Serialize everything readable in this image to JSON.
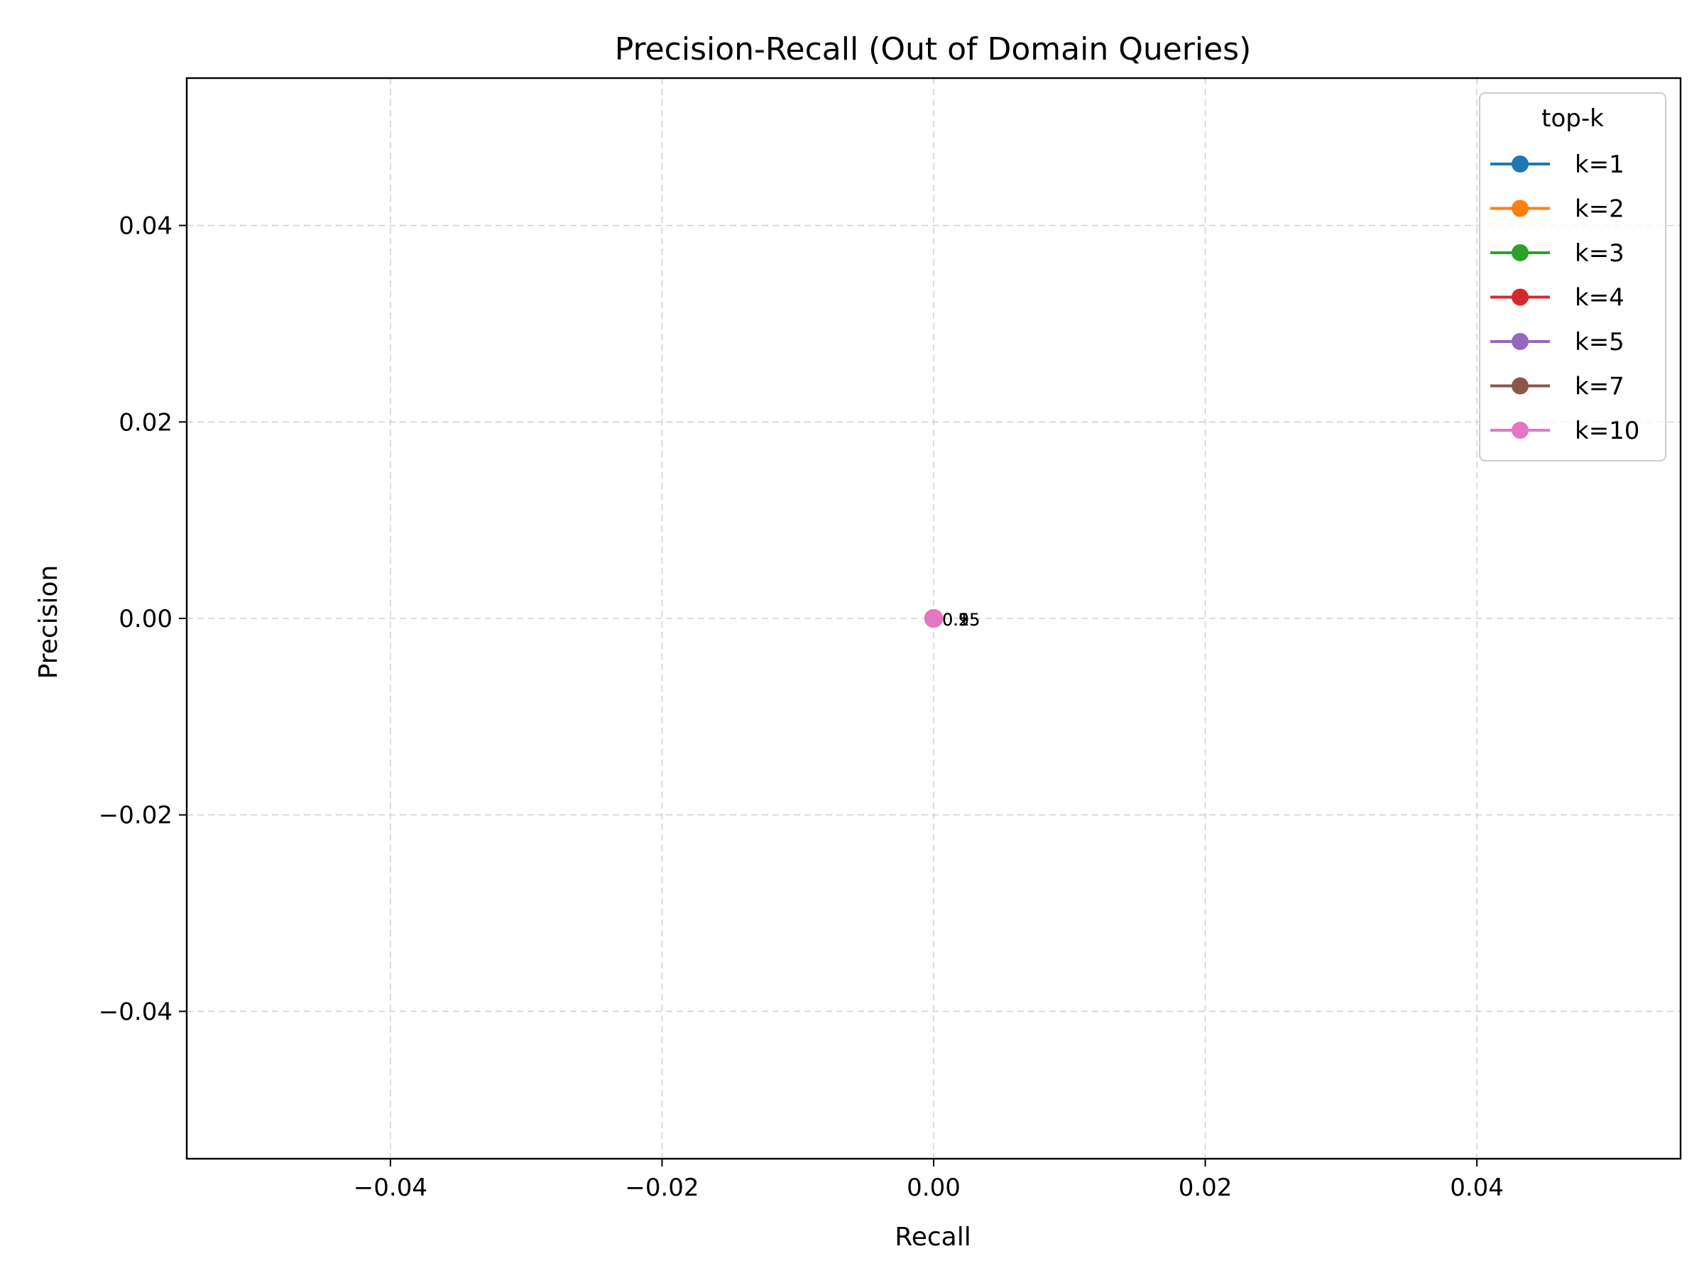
{
  "chart_data": {
    "type": "line",
    "title": "Precision-Recall (Out of Domain Queries)",
    "xlabel": "Recall",
    "ylabel": "Precision",
    "xlim": [
      -0.055,
      0.055
    ],
    "ylim": [
      -0.055,
      0.055
    ],
    "xticks": [
      -0.04,
      -0.02,
      0.0,
      0.02,
      0.04
    ],
    "yticks": [
      -0.04,
      -0.02,
      0.0,
      0.02,
      0.04
    ],
    "xtick_labels": [
      "−0.04",
      "−0.02",
      "0.00",
      "0.02",
      "0.04"
    ],
    "ytick_labels": [
      "−0.04",
      "−0.02",
      "0.00",
      "0.02",
      "0.04"
    ],
    "grid": true,
    "legend": {
      "title": "top-k",
      "placement": "top-right"
    },
    "point_annotations": [
      "0.15",
      "0.25",
      "0.5",
      "0.95"
    ],
    "series": [
      {
        "name": "k=1",
        "color": "#1f77b4",
        "x": [
          0.0
        ],
        "y": [
          0.0
        ]
      },
      {
        "name": "k=2",
        "color": "#ff7f0e",
        "x": [
          0.0
        ],
        "y": [
          0.0
        ]
      },
      {
        "name": "k=3",
        "color": "#2ca02c",
        "x": [
          0.0
        ],
        "y": [
          0.0
        ]
      },
      {
        "name": "k=4",
        "color": "#d62728",
        "x": [
          0.0
        ],
        "y": [
          0.0
        ]
      },
      {
        "name": "k=5",
        "color": "#9467bd",
        "x": [
          0.0
        ],
        "y": [
          0.0
        ]
      },
      {
        "name": "k=7",
        "color": "#8c564b",
        "x": [
          0.0
        ],
        "y": [
          0.0
        ]
      },
      {
        "name": "k=10",
        "color": "#e377c2",
        "x": [
          0.0
        ],
        "y": [
          0.0
        ]
      }
    ]
  }
}
